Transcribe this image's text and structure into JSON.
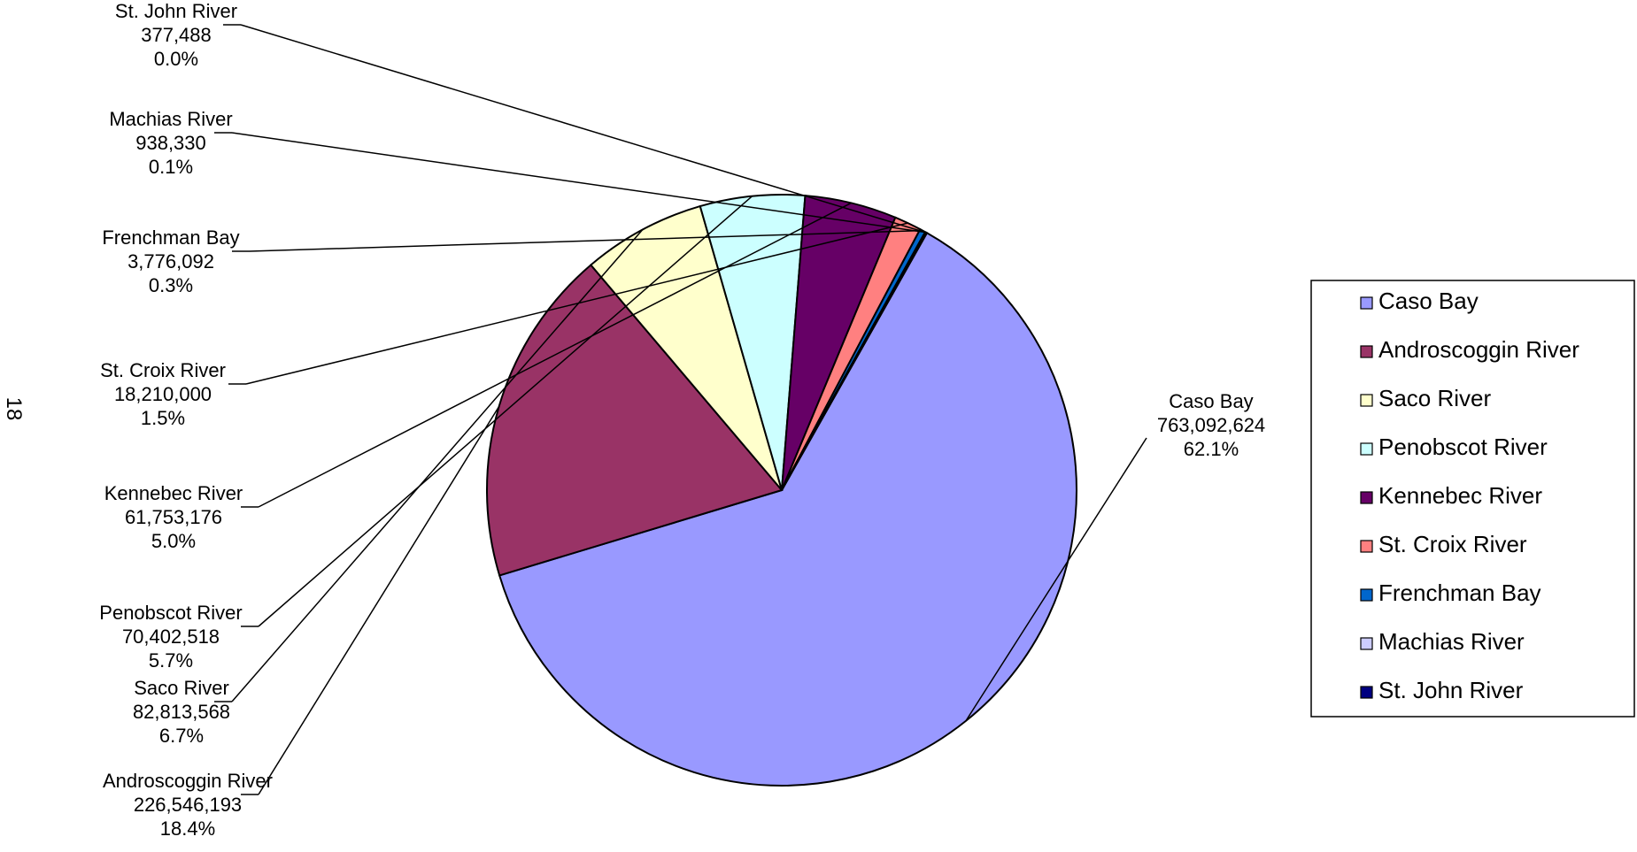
{
  "page_number": "18",
  "chart_data": {
    "type": "pie",
    "legend_position": "right",
    "grid": false,
    "slices": [
      {
        "name": "Caso Bay",
        "value_label": "763,092,624",
        "pct_label": "62.1%",
        "value": 763092624,
        "color": "#9999ff"
      },
      {
        "name": "Androscoggin River",
        "value_label": "226,546,193",
        "pct_label": "18.4%",
        "value": 226546193,
        "color": "#993366"
      },
      {
        "name": "Saco River",
        "value_label": "82,813,568",
        "pct_label": "6.7%",
        "value": 82813568,
        "color": "#ffffcc"
      },
      {
        "name": "Penobscot River",
        "value_label": "70,402,518",
        "pct_label": "5.7%",
        "value": 70402518,
        "color": "#ccffff"
      },
      {
        "name": "Kennebec River",
        "value_label": "61,753,176",
        "pct_label": "5.0%",
        "value": 61753176,
        "color": "#660066"
      },
      {
        "name": "St. Croix River",
        "value_label": "18,210,000",
        "pct_label": "1.5%",
        "value": 18210000,
        "color": "#ff8080"
      },
      {
        "name": "Frenchman Bay",
        "value_label": "3,776,092",
        "pct_label": "0.3%",
        "value": 3776092,
        "color": "#0066cc"
      },
      {
        "name": "Machias River",
        "value_label": "938,330",
        "pct_label": "0.1%",
        "value": 938330,
        "color": "#ccccff"
      },
      {
        "name": "St. John River",
        "value_label": "377,488",
        "pct_label": "0.0%",
        "value": 377488,
        "color": "#000080"
      }
    ]
  }
}
